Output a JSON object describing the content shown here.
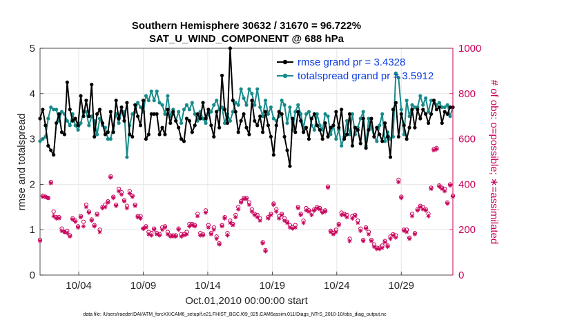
{
  "chart_data": {
    "type": "line",
    "title": "Southern Hemisphere 30632 / 31670 = 96.722%",
    "subtitle": "SAT_U_WIND_COMPONENT @ 688 hPa",
    "xlabel": "Oct.01,2010 00:00:00 start",
    "ylabel": "rmse and totalspread",
    "y2label": "# of obs: o=possible; ∗=assimilated",
    "xlim": [
      1,
      33
    ],
    "ylim": [
      0,
      5
    ],
    "y2lim": [
      0,
      1000
    ],
    "x_ticks": [
      {
        "value": 4,
        "label": "10/04"
      },
      {
        "value": 9,
        "label": "10/09"
      },
      {
        "value": 14,
        "label": "10/14"
      },
      {
        "value": 19,
        "label": "10/19"
      },
      {
        "value": 24,
        "label": "10/24"
      },
      {
        "value": 29,
        "label": "10/29"
      }
    ],
    "y_ticks": [
      "0",
      "1",
      "2",
      "3",
      "4",
      "5"
    ],
    "y2_ticks": [
      "0",
      "200",
      "400",
      "600",
      "800",
      "1000"
    ],
    "grid": true,
    "legend_position": "top-right",
    "series": [
      {
        "name": "rmse grand pr = 3.4328",
        "color": "#000000",
        "marker": "filled-circle",
        "values": [
          3.45,
          3.65,
          3.3,
          2.85,
          2.75,
          2.65,
          3.35,
          3.55,
          3.15,
          3.1,
          4.25,
          3.65,
          3.4,
          3.45,
          3.3,
          3.95,
          3.5,
          3.85,
          3.5,
          4.2,
          3.05,
          3.55,
          3.65,
          3.35,
          3.1,
          3.15,
          3.6,
          3.15,
          3.85,
          3.45,
          3.7,
          3.4,
          3.8,
          3.1,
          3.05,
          3.75,
          3.5,
          3.3,
          3.85,
          3.0,
          3.1,
          3.55,
          3.55,
          3.55,
          3.1,
          3.25,
          3.1,
          3.65,
          3.35,
          3.6,
          3.4,
          3.25,
          3.0,
          2.95,
          3.45,
          3.4,
          3.15,
          3.3,
          3.55,
          3.45,
          3.8,
          3.45,
          3.65,
          3.3,
          3.05,
          3.6,
          3.25,
          4.4,
          3.65,
          3.35,
          5.0,
          3.85,
          3.6,
          3.15,
          3.4,
          3.55,
          3.25,
          3.1,
          3.85,
          3.4,
          3.3,
          3.5,
          3.15,
          3.6,
          3.3,
          3.05,
          2.65,
          3.3,
          3.6,
          3.55,
          3.05,
          2.75,
          2.4,
          3.45,
          3.15,
          3.6,
          3.4,
          3.15,
          3.25,
          3.0,
          3.45,
          3.55,
          3.3,
          3.2,
          3.0,
          3.35,
          3.05,
          3.25,
          3.3,
          3.6,
          3.25,
          3.65,
          3.0,
          3.1,
          3.55,
          2.85,
          3.25,
          3.2,
          2.9,
          3.45,
          2.8,
          3.2,
          3.45,
          3.05,
          3.25,
          3.1,
          2.95,
          3.35,
          3.05,
          2.6,
          3.65,
          3.8,
          3.05,
          3.55,
          3.3,
          3.0,
          3.25,
          3.65,
          3.25,
          3.65,
          3.45,
          3.65,
          3.55,
          3.35,
          3.55,
          3.85,
          3.65,
          3.7,
          3.35,
          3.6,
          3.55,
          3.7,
          3.7
        ]
      },
      {
        "name": "totalspread grand pr = 3.5912",
        "color": "#178a8a",
        "marker": "filled-circle",
        "values": [
          2.95,
          3.0,
          3.05,
          3.45,
          3.7,
          3.65,
          3.65,
          3.4,
          3.6,
          3.55,
          3.4,
          3.3,
          3.55,
          3.3,
          3.2,
          3.35,
          3.6,
          3.6,
          3.3,
          3.5,
          3.4,
          3.1,
          3.45,
          3.3,
          3.25,
          3.0,
          3.0,
          3.3,
          3.55,
          3.35,
          3.6,
          3.6,
          2.6,
          3.3,
          3.55,
          3.6,
          3.8,
          3.7,
          3.6,
          3.95,
          3.85,
          4.05,
          3.85,
          4.05,
          3.8,
          3.75,
          3.55,
          3.95,
          3.5,
          3.65,
          3.4,
          3.6,
          3.35,
          3.65,
          3.75,
          3.65,
          3.8,
          3.55,
          3.4,
          3.6,
          3.45,
          3.35,
          3.55,
          3.6,
          3.75,
          3.85,
          3.65,
          3.7,
          3.35,
          3.55,
          3.4,
          3.6,
          3.8,
          3.75,
          4.1,
          3.9,
          3.75,
          4.1,
          4.0,
          3.75,
          4.1,
          3.7,
          3.5,
          3.85,
          3.55,
          3.7,
          3.45,
          3.4,
          3.5,
          3.85,
          3.75,
          3.35,
          3.7,
          3.2,
          3.6,
          3.75,
          3.55,
          3.25,
          3.55,
          3.6,
          3.3,
          3.2,
          3.55,
          3.3,
          3.2,
          3.55,
          3.5,
          3.1,
          3.3,
          3.0,
          3.2,
          2.85,
          3.05,
          3.4,
          3.1,
          3.55,
          3.1,
          3.25,
          3.45,
          3.6,
          2.85,
          3.45,
          3.25,
          3.05,
          2.95,
          3.3,
          3.55,
          2.95,
          3.15,
          3.0,
          3.05,
          4.45,
          4.35,
          3.65,
          3.1,
          3.85,
          3.5,
          3.75,
          3.7,
          3.7,
          3.95,
          3.75,
          3.9,
          3.6,
          3.85,
          3.85,
          3.75,
          3.8,
          3.7,
          3.7,
          3.75,
          3.5,
          3.7
        ]
      },
      {
        "name": "# of obs possible",
        "color": "#c8005a",
        "marker": "circle",
        "axis": "right",
        "values": [
          155,
          350,
          345,
          340,
          410,
          280,
          255,
          255,
          205,
          190,
          195,
          175,
          250,
          240,
          215,
          260,
          235,
          310,
          280,
          245,
          220,
          270,
          200,
          300,
          310,
          325,
          435,
          345,
          310,
          380,
          365,
          330,
          305,
          370,
          350,
          310,
          260,
          260,
          205,
          215,
          190,
          185,
          205,
          185,
          180,
          210,
          215,
          190,
          175,
          175,
          175,
          205,
          180,
          180,
          190,
          225,
          225,
          220,
          270,
          185,
          180,
          285,
          220,
          185,
          210,
          170,
          140,
          220,
          255,
          185,
          240,
          225,
          265,
          300,
          325,
          340,
          340,
          320,
          290,
          270,
          265,
          250,
          145,
          110,
          255,
          270,
          315,
          290,
          260,
          270,
          250,
          235,
          220,
          210,
          220,
          300,
          270,
          240,
          295,
          285,
          275,
          290,
          300,
          295,
          280,
          285,
          390,
          195,
          185,
          200,
          225,
          275,
          270,
          265,
          160,
          260,
          265,
          240,
          205,
          155,
          210,
          190,
          155,
          135,
          120,
          120,
          130,
          150,
          130,
          170,
          180,
          175,
          420,
          345,
          200,
          200,
          165,
          270,
          185,
          290,
          305,
          300,
          290,
          270,
          385,
          555,
          560,
          395,
          385,
          380,
          320,
          400,
          350
        ]
      },
      {
        "name": "# of obs assimilated",
        "color": "#c8005a",
        "marker": "asterisk",
        "axis": "right",
        "values": [
          150,
          345,
          345,
          340,
          405,
          260,
          250,
          250,
          195,
          190,
          185,
          170,
          245,
          235,
          210,
          255,
          215,
          300,
          275,
          240,
          215,
          265,
          190,
          295,
          300,
          320,
          430,
          340,
          305,
          370,
          355,
          325,
          295,
          360,
          345,
          305,
          255,
          250,
          205,
          210,
          180,
          175,
          200,
          180,
          175,
          200,
          210,
          180,
          170,
          170,
          170,
          200,
          170,
          175,
          180,
          215,
          220,
          215,
          260,
          175,
          175,
          275,
          210,
          180,
          200,
          160,
          135,
          215,
          250,
          175,
          230,
          220,
          255,
          290,
          320,
          335,
          335,
          310,
          280,
          265,
          255,
          240,
          140,
          105,
          250,
          265,
          310,
          280,
          250,
          265,
          240,
          230,
          210,
          205,
          210,
          295,
          265,
          230,
          285,
          280,
          265,
          285,
          295,
          290,
          275,
          280,
          385,
          190,
          180,
          190,
          220,
          265,
          265,
          255,
          150,
          250,
          260,
          230,
          195,
          150,
          205,
          180,
          150,
          125,
          115,
          115,
          120,
          145,
          125,
          160,
          175,
          165,
          410,
          340,
          195,
          190,
          160,
          260,
          180,
          285,
          300,
          290,
          285,
          260,
          380,
          550,
          555,
          390,
          380,
          370,
          315,
          395,
          345
        ]
      }
    ],
    "footnote": "data file: /Users/raeder/DAI/ATM_forcXX/CAM6_setup/f.e21.FHIST_BGC.f09_025.CAM6assim.011/Diags_NTrS_2010-10/obs_diag_output.nc"
  },
  "colors": {
    "rmse": "#000000",
    "spread": "#178a8a",
    "obs": "#c8005a",
    "legend_text": "#1040e0",
    "grid": "#e6e6e6"
  }
}
